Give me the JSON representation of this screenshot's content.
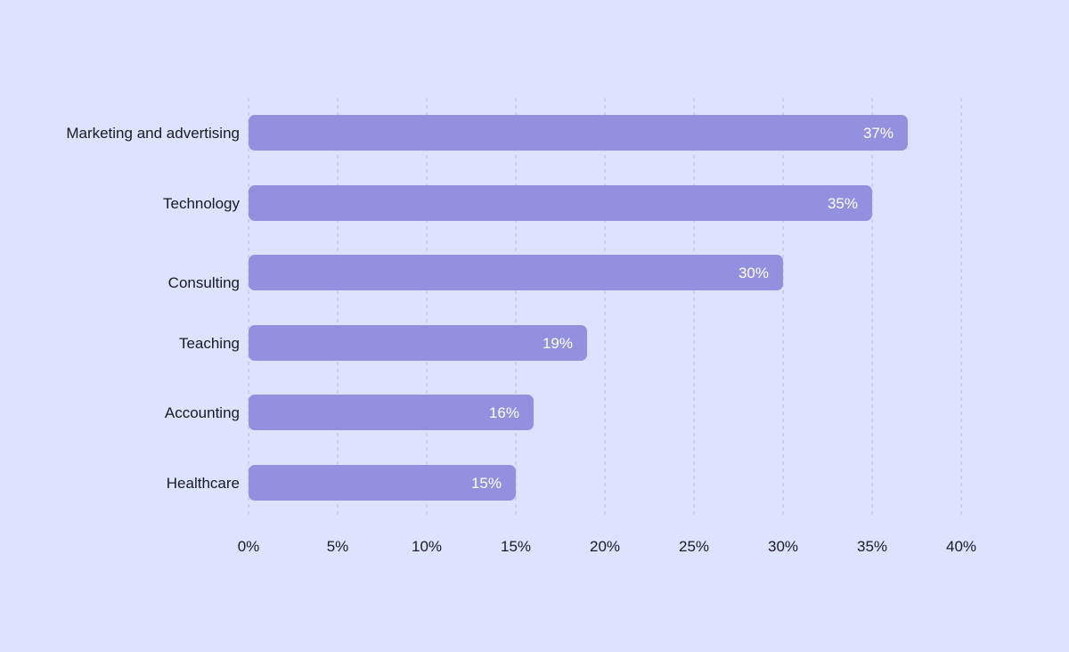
{
  "chart_data": {
    "type": "bar",
    "orientation": "horizontal",
    "categories": [
      "Marketing and advertising",
      "Technology",
      "Consulting",
      "Teaching",
      "Accounting",
      "Healthcare"
    ],
    "values": [
      37,
      35,
      30,
      19,
      16,
      15
    ],
    "value_labels": [
      "37%",
      "35%",
      "30%",
      "19%",
      "16%",
      "15%"
    ],
    "x_ticks": [
      0,
      5,
      10,
      15,
      20,
      25,
      30,
      35,
      40
    ],
    "x_tick_labels": [
      "0%",
      "5%",
      "10%",
      "15%",
      "20%",
      "25%",
      "30%",
      "35%",
      "40%"
    ],
    "xlim": [
      0,
      40
    ],
    "grid": "vertical dashed",
    "legend": "none",
    "colors": {
      "background": "#dde3fe",
      "bar": "#9390e0",
      "grid": "#b9bfd6",
      "value_text": "#ffffff",
      "label_text": "#1a1a22"
    }
  }
}
